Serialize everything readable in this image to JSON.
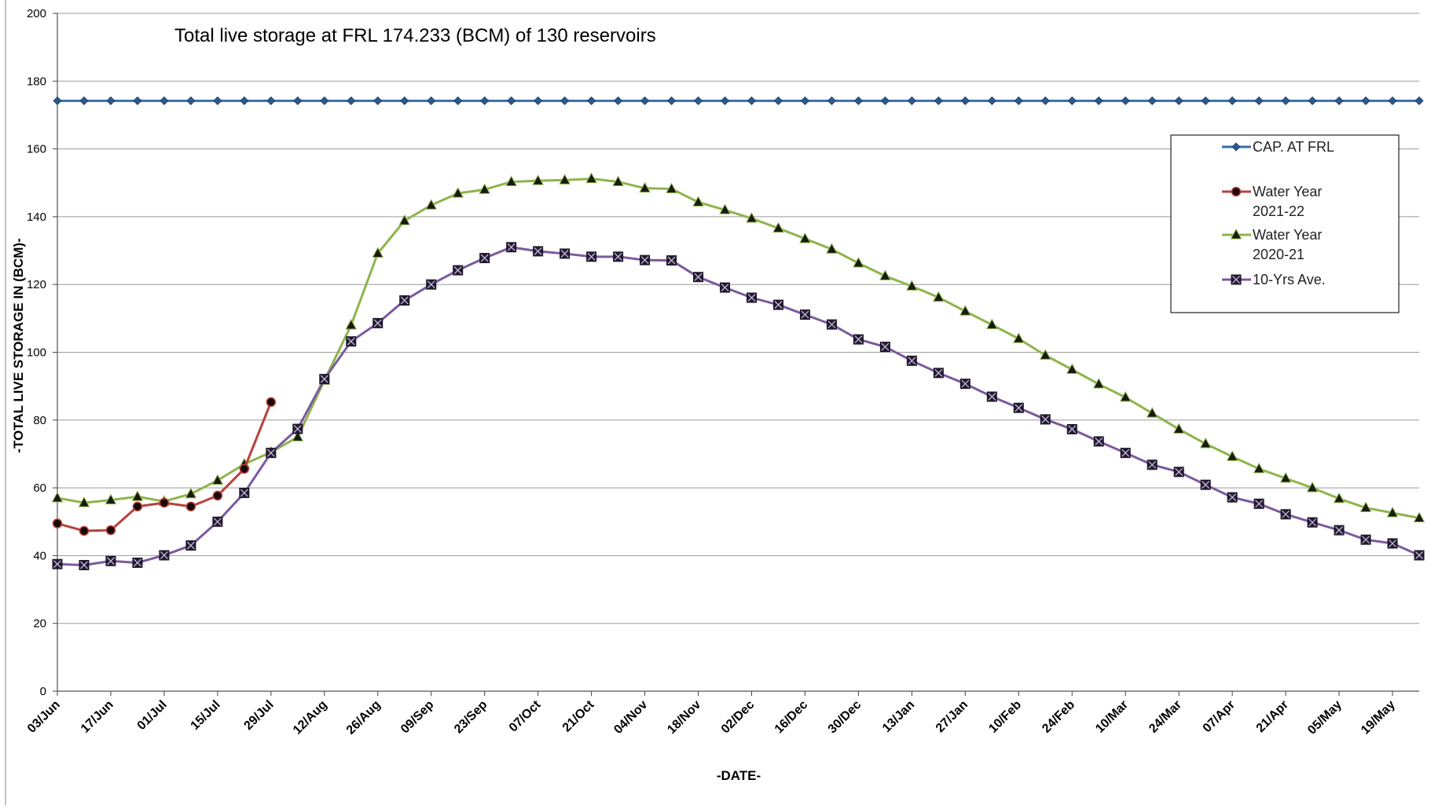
{
  "chart_data": {
    "type": "line",
    "title": "Total live storage at FRL 174.233 (BCM) of 130 reservoirs",
    "xlabel": "-DATE-",
    "ylabel": "-TOTAL LIVE STORAGE IN (BCM)-",
    "ylim": [
      0,
      200
    ],
    "yticks": [
      0,
      20,
      40,
      60,
      80,
      100,
      120,
      140,
      160,
      180,
      200
    ],
    "grid": true,
    "legend_position": "right",
    "x_labels": [
      "03/Jun",
      "17/Jun",
      "01/Jul",
      "15/Jul",
      "29/Jul",
      "12/Aug",
      "26/Aug",
      "09/Sep",
      "23/Sep",
      "07/Oct",
      "21/Oct",
      "04/Nov",
      "18/Nov",
      "02/Dec",
      "16/Dec",
      "30/Dec",
      "13/Jan",
      "27/Jan",
      "10/Feb",
      "24/Feb",
      "10/Mar",
      "24/Mar",
      "07/Apr",
      "21/Apr",
      "05/May",
      "19/May"
    ],
    "x_label_indices": [
      0,
      2,
      4,
      6,
      8,
      10,
      12,
      14,
      16,
      18,
      20,
      22,
      24,
      26,
      28,
      30,
      32,
      34,
      36,
      38,
      40,
      42,
      44,
      46,
      48,
      50
    ],
    "n_points": 52,
    "series": [
      {
        "name": "CAP. AT FRL",
        "color": "#3a6fa6",
        "marker": "diamond",
        "values": [
          174.2,
          174.2,
          174.2,
          174.2,
          174.2,
          174.2,
          174.2,
          174.2,
          174.2,
          174.2,
          174.2,
          174.2,
          174.2,
          174.2,
          174.2,
          174.2,
          174.2,
          174.2,
          174.2,
          174.2,
          174.2,
          174.2,
          174.2,
          174.2,
          174.2,
          174.2,
          174.2,
          174.2,
          174.2,
          174.2,
          174.2,
          174.2,
          174.2,
          174.2,
          174.2,
          174.2,
          174.2,
          174.2,
          174.2,
          174.2,
          174.2,
          174.2,
          174.2,
          174.2,
          174.2,
          174.2,
          174.2,
          174.2,
          174.2,
          174.2,
          174.2,
          174.2
        ]
      },
      {
        "name": "Water Year 2021-22",
        "color": "#b8413c",
        "marker": "circle",
        "values": [
          49.5,
          47.3,
          47.5,
          54.5,
          55.6,
          54.5,
          57.7,
          65.6,
          85.3
        ]
      },
      {
        "name": "Water Year 2020-21",
        "color": "#8db54c",
        "marker": "triangle",
        "values": [
          57.0,
          55.6,
          56.4,
          57.4,
          56.0,
          58.2,
          62.2,
          67.0,
          70.5,
          75.0,
          91.7,
          108.0,
          129.2,
          138.8,
          143.4,
          146.9,
          148.0,
          150.3,
          150.6,
          150.8,
          151.2,
          150.3,
          148.4,
          148.2,
          144.3,
          142.0,
          139.5,
          136.6,
          133.5,
          130.4,
          126.3,
          122.5,
          119.5,
          116.2,
          112.1,
          108.1,
          104.0,
          99.1,
          94.9,
          90.6,
          86.7,
          82.0,
          77.3,
          73.0,
          69.2,
          65.6,
          62.8,
          60.0,
          56.8,
          54.1,
          52.6,
          51.1
        ]
      },
      {
        "name": "10-Yrs Ave.",
        "color": "#7a5a9e",
        "marker": "square-x",
        "values": [
          37.5,
          37.2,
          38.4,
          37.9,
          40.1,
          43.0,
          50.0,
          58.5,
          70.3,
          77.4,
          92.1,
          103.2,
          108.6,
          115.3,
          120.0,
          124.2,
          127.8,
          131.0,
          129.8,
          129.1,
          128.2,
          128.2,
          127.2,
          127.1,
          122.2,
          119.1,
          116.1,
          114.0,
          111.1,
          108.2,
          103.8,
          101.6,
          97.5,
          93.9,
          90.7,
          86.9,
          83.6,
          80.2,
          77.3,
          73.7,
          70.3,
          66.8,
          64.7,
          60.9,
          57.2,
          55.3,
          52.2,
          49.8,
          47.5,
          44.7,
          43.6,
          40.1
        ]
      }
    ]
  }
}
